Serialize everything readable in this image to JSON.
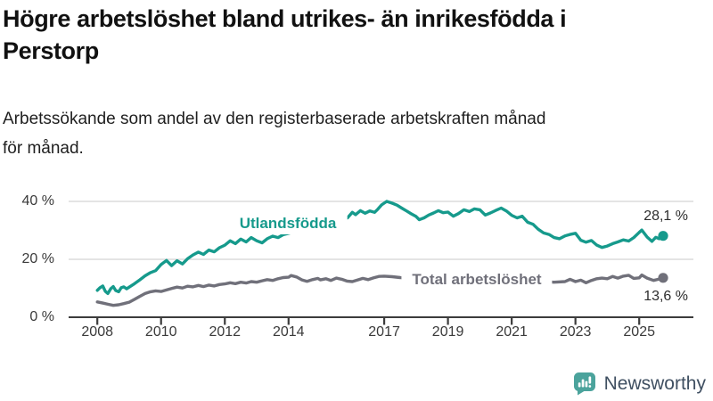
{
  "header": {
    "title": "Högre arbetslöshet bland utrikes- än inrikesfödda i Perstorp",
    "title_lines": [
      "Högre arbetslöshet bland utrikes- än inrikesfödda i",
      "Perstorp"
    ],
    "subtitle": "Arbetssökande som andel av den registerbaserade arbetskraften månad för månad.",
    "subtitle_lines": [
      "Arbetssökande som andel av den registerbaserade arbetskraften månad",
      "för månad."
    ]
  },
  "colors": {
    "teal": "#169a8c",
    "gray": "#70707a",
    "axis": "#3c3c3c",
    "grid": "#dcdcdc",
    "tick_text": "#3a3a3a",
    "value_text": "#2d2d2d",
    "logo_bubble": "#4ba39c",
    "brand_text": "#3f4f61"
  },
  "chart_data": {
    "type": "line",
    "title": "Högre arbetslöshet bland utrikes- än inrikesfödda i Perstorp",
    "subtitle": "Arbetssökande som andel av den registerbaserade arbetskraften månad för månad.",
    "xlabel": "",
    "ylabel": "",
    "unit": "%",
    "xlim": [
      2007.1,
      2026.7
    ],
    "ylim": [
      0,
      44
    ],
    "grid": "horizontal",
    "legend": "inline-labels",
    "y_ticks": [
      {
        "value": 0,
        "label": "0 %"
      },
      {
        "value": 20,
        "label": "20 %"
      },
      {
        "value": 40,
        "label": "40 %"
      }
    ],
    "x_ticks": [
      {
        "value": 2008,
        "label": "2008"
      },
      {
        "value": 2010,
        "label": "2010"
      },
      {
        "value": 2012,
        "label": "2012"
      },
      {
        "value": 2014,
        "label": "2014"
      },
      {
        "value": 2017,
        "label": "2017"
      },
      {
        "value": 2019,
        "label": "2019"
      },
      {
        "value": 2021,
        "label": "2021"
      },
      {
        "value": 2023,
        "label": "2023"
      },
      {
        "value": 2025,
        "label": "2025"
      }
    ],
    "series": [
      {
        "id": "utlandsfodda",
        "name": "Utlandsfödda",
        "color": "#169a8c",
        "end_value": 28.1,
        "end_label": "28,1 %",
        "points": [
          [
            2008.0,
            9.3
          ],
          [
            2008.08,
            10.2
          ],
          [
            2008.17,
            10.8
          ],
          [
            2008.25,
            9.0
          ],
          [
            2008.33,
            8.2
          ],
          [
            2008.42,
            9.8
          ],
          [
            2008.5,
            10.6
          ],
          [
            2008.58,
            9.2
          ],
          [
            2008.67,
            8.8
          ],
          [
            2008.75,
            10.2
          ],
          [
            2008.83,
            10.5
          ],
          [
            2008.92,
            9.8
          ],
          [
            2009.0,
            10.4
          ],
          [
            2009.17,
            11.6
          ],
          [
            2009.33,
            12.9
          ],
          [
            2009.5,
            14.3
          ],
          [
            2009.67,
            15.4
          ],
          [
            2009.83,
            16.1
          ],
          [
            2010.0,
            18.2
          ],
          [
            2010.17,
            19.6
          ],
          [
            2010.33,
            17.8
          ],
          [
            2010.5,
            19.5
          ],
          [
            2010.67,
            18.4
          ],
          [
            2010.83,
            20.2
          ],
          [
            2011.0,
            21.5
          ],
          [
            2011.17,
            22.5
          ],
          [
            2011.33,
            21.7
          ],
          [
            2011.5,
            23.2
          ],
          [
            2011.67,
            22.6
          ],
          [
            2011.83,
            24.0
          ],
          [
            2012.0,
            24.9
          ],
          [
            2012.17,
            26.4
          ],
          [
            2012.33,
            25.4
          ],
          [
            2012.5,
            27.0
          ],
          [
            2012.67,
            26.0
          ],
          [
            2012.83,
            27.5
          ],
          [
            2013.0,
            26.4
          ],
          [
            2013.17,
            25.7
          ],
          [
            2013.33,
            27.1
          ],
          [
            2013.5,
            28.0
          ],
          [
            2013.67,
            27.5
          ],
          [
            2013.83,
            28.5
          ],
          [
            2014.0,
            29.0
          ],
          [
            2014.25,
            29.7
          ],
          [
            2014.5,
            30.4
          ],
          [
            2014.75,
            31.1
          ],
          [
            2015.0,
            31.8
          ],
          [
            2015.25,
            32.4
          ],
          [
            2015.5,
            33.1
          ],
          [
            2015.7,
            33.8
          ],
          [
            2015.85,
            34.3
          ],
          [
            2016.0,
            36.2
          ],
          [
            2016.1,
            35.4
          ],
          [
            2016.25,
            36.8
          ],
          [
            2016.4,
            35.9
          ],
          [
            2016.55,
            36.7
          ],
          [
            2016.7,
            36.2
          ],
          [
            2016.8,
            37.3
          ],
          [
            2016.92,
            38.8
          ],
          [
            2017.08,
            40.0
          ],
          [
            2017.25,
            39.4
          ],
          [
            2017.4,
            38.7
          ],
          [
            2017.55,
            37.7
          ],
          [
            2017.7,
            36.7
          ],
          [
            2017.85,
            35.7
          ],
          [
            2018.0,
            34.8
          ],
          [
            2018.1,
            33.7
          ],
          [
            2018.25,
            34.3
          ],
          [
            2018.4,
            35.3
          ],
          [
            2018.55,
            36.0
          ],
          [
            2018.7,
            36.8
          ],
          [
            2018.85,
            36.1
          ],
          [
            2019.0,
            36.3
          ],
          [
            2019.17,
            34.9
          ],
          [
            2019.33,
            35.8
          ],
          [
            2019.5,
            37.1
          ],
          [
            2019.67,
            36.5
          ],
          [
            2019.83,
            37.4
          ],
          [
            2020.0,
            37.1
          ],
          [
            2020.17,
            35.3
          ],
          [
            2020.33,
            36.0
          ],
          [
            2020.5,
            36.9
          ],
          [
            2020.67,
            37.7
          ],
          [
            2020.83,
            36.7
          ],
          [
            2021.0,
            35.2
          ],
          [
            2021.17,
            34.3
          ],
          [
            2021.33,
            34.9
          ],
          [
            2021.5,
            32.8
          ],
          [
            2021.67,
            32.1
          ],
          [
            2021.83,
            30.4
          ],
          [
            2022.0,
            29.1
          ],
          [
            2022.17,
            28.6
          ],
          [
            2022.33,
            27.5
          ],
          [
            2022.5,
            27.1
          ],
          [
            2022.67,
            28.1
          ],
          [
            2022.83,
            28.6
          ],
          [
            2023.0,
            29.0
          ],
          [
            2023.17,
            26.6
          ],
          [
            2023.33,
            25.9
          ],
          [
            2023.5,
            26.5
          ],
          [
            2023.67,
            24.9
          ],
          [
            2023.83,
            24.1
          ],
          [
            2024.0,
            24.6
          ],
          [
            2024.17,
            25.4
          ],
          [
            2024.33,
            26.0
          ],
          [
            2024.5,
            26.7
          ],
          [
            2024.67,
            26.3
          ],
          [
            2024.83,
            27.5
          ],
          [
            2025.0,
            29.3
          ],
          [
            2025.08,
            30.1
          ],
          [
            2025.25,
            27.7
          ],
          [
            2025.4,
            26.2
          ],
          [
            2025.52,
            27.6
          ],
          [
            2025.63,
            27.1
          ],
          [
            2025.75,
            28.1
          ]
        ]
      },
      {
        "id": "total-arbetsloshet",
        "name": "Total arbetslöshet",
        "color": "#70707a",
        "end_value": 13.6,
        "end_label": "13,6 %",
        "points": [
          [
            2008.0,
            5.3
          ],
          [
            2008.17,
            4.9
          ],
          [
            2008.33,
            4.5
          ],
          [
            2008.5,
            4.1
          ],
          [
            2008.67,
            4.3
          ],
          [
            2008.83,
            4.7
          ],
          [
            2009.0,
            5.2
          ],
          [
            2009.17,
            6.2
          ],
          [
            2009.33,
            7.2
          ],
          [
            2009.5,
            8.2
          ],
          [
            2009.67,
            8.8
          ],
          [
            2009.83,
            9.1
          ],
          [
            2010.0,
            8.9
          ],
          [
            2010.17,
            9.4
          ],
          [
            2010.33,
            9.9
          ],
          [
            2010.5,
            10.4
          ],
          [
            2010.67,
            10.1
          ],
          [
            2010.83,
            10.7
          ],
          [
            2011.0,
            10.5
          ],
          [
            2011.17,
            11.0
          ],
          [
            2011.33,
            10.6
          ],
          [
            2011.5,
            11.1
          ],
          [
            2011.67,
            10.8
          ],
          [
            2011.83,
            11.3
          ],
          [
            2012.0,
            11.5
          ],
          [
            2012.17,
            11.9
          ],
          [
            2012.33,
            11.6
          ],
          [
            2012.5,
            12.1
          ],
          [
            2012.67,
            11.8
          ],
          [
            2012.83,
            12.3
          ],
          [
            2013.0,
            12.1
          ],
          [
            2013.17,
            12.6
          ],
          [
            2013.33,
            13.0
          ],
          [
            2013.5,
            12.7
          ],
          [
            2013.67,
            13.3
          ],
          [
            2013.83,
            13.7
          ],
          [
            2014.0,
            13.8
          ],
          [
            2014.08,
            14.4
          ],
          [
            2014.25,
            13.9
          ],
          [
            2014.42,
            12.9
          ],
          [
            2014.58,
            12.4
          ],
          [
            2014.75,
            13.0
          ],
          [
            2014.92,
            13.4
          ],
          [
            2015.0,
            12.9
          ],
          [
            2015.17,
            13.3
          ],
          [
            2015.33,
            12.7
          ],
          [
            2015.5,
            13.5
          ],
          [
            2015.67,
            13.1
          ],
          [
            2015.83,
            12.5
          ],
          [
            2016.0,
            12.3
          ],
          [
            2016.17,
            12.9
          ],
          [
            2016.33,
            13.4
          ],
          [
            2016.5,
            13.0
          ],
          [
            2016.67,
            13.6
          ],
          [
            2016.83,
            14.1
          ],
          [
            2017.0,
            14.2
          ],
          [
            2017.25,
            14.0
          ],
          [
            2017.5,
            13.7
          ],
          [
            2017.75,
            13.3
          ],
          [
            2018.0,
            13.1
          ],
          [
            2018.5,
            12.7
          ],
          [
            2019.0,
            12.5
          ],
          [
            2019.5,
            12.3
          ],
          [
            2020.0,
            12.9
          ],
          [
            2020.5,
            13.3
          ],
          [
            2021.0,
            13.0
          ],
          [
            2021.5,
            12.6
          ],
          [
            2022.0,
            12.3
          ],
          [
            2022.33,
            12.1
          ],
          [
            2022.67,
            12.3
          ],
          [
            2022.83,
            13.1
          ],
          [
            2023.0,
            12.3
          ],
          [
            2023.17,
            12.8
          ],
          [
            2023.33,
            11.9
          ],
          [
            2023.5,
            12.7
          ],
          [
            2023.67,
            13.3
          ],
          [
            2023.83,
            13.5
          ],
          [
            2024.0,
            13.3
          ],
          [
            2024.17,
            14.1
          ],
          [
            2024.33,
            13.5
          ],
          [
            2024.5,
            14.2
          ],
          [
            2024.67,
            14.5
          ],
          [
            2024.83,
            13.4
          ],
          [
            2025.0,
            13.6
          ],
          [
            2025.08,
            14.6
          ],
          [
            2025.25,
            13.5
          ],
          [
            2025.45,
            12.7
          ],
          [
            2025.6,
            13.1
          ],
          [
            2025.75,
            13.6
          ]
        ]
      }
    ]
  },
  "footer": {
    "brand": "Newsworthy"
  }
}
